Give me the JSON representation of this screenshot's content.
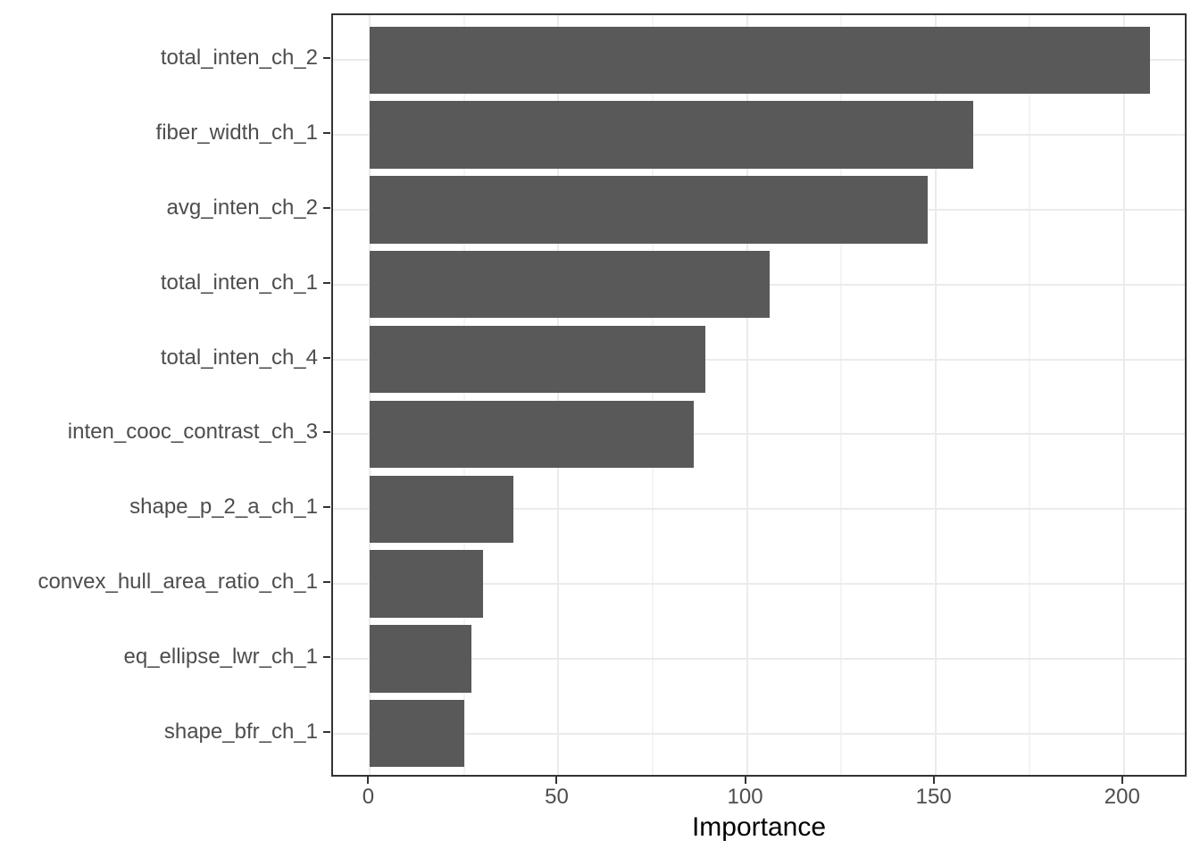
{
  "chart_data": {
    "type": "bar",
    "orientation": "horizontal",
    "title": "",
    "xlabel": "Importance",
    "ylabel": "",
    "categories": [
      "total_inten_ch_2",
      "fiber_width_ch_1",
      "avg_inten_ch_2",
      "total_inten_ch_1",
      "total_inten_ch_4",
      "inten_cooc_contrast_ch_3",
      "shape_p_2_a_ch_1",
      "convex_hull_area_ratio_ch_1",
      "eq_ellipse_lwr_ch_1",
      "shape_bfr_ch_1"
    ],
    "values": [
      207,
      160,
      148,
      106,
      89,
      86,
      38,
      30,
      27,
      25
    ],
    "xlim": [
      -9.8,
      217.1
    ],
    "x_major_ticks": [
      0,
      50,
      100,
      150,
      200
    ],
    "x_minor_gridlines": [
      25,
      75,
      125,
      175
    ],
    "grid": "vertical major+minor, horizontal major at categories",
    "legend": "none",
    "colors": {
      "bar_fill": "#595959",
      "panel_border": "#333333",
      "major_grid": "#ebebeb",
      "minor_grid": "#f4f4f4",
      "tick_mark": "#333333",
      "axis_text": "#4d4d4d",
      "axis_title": "#000000",
      "background": "#ffffff"
    }
  }
}
